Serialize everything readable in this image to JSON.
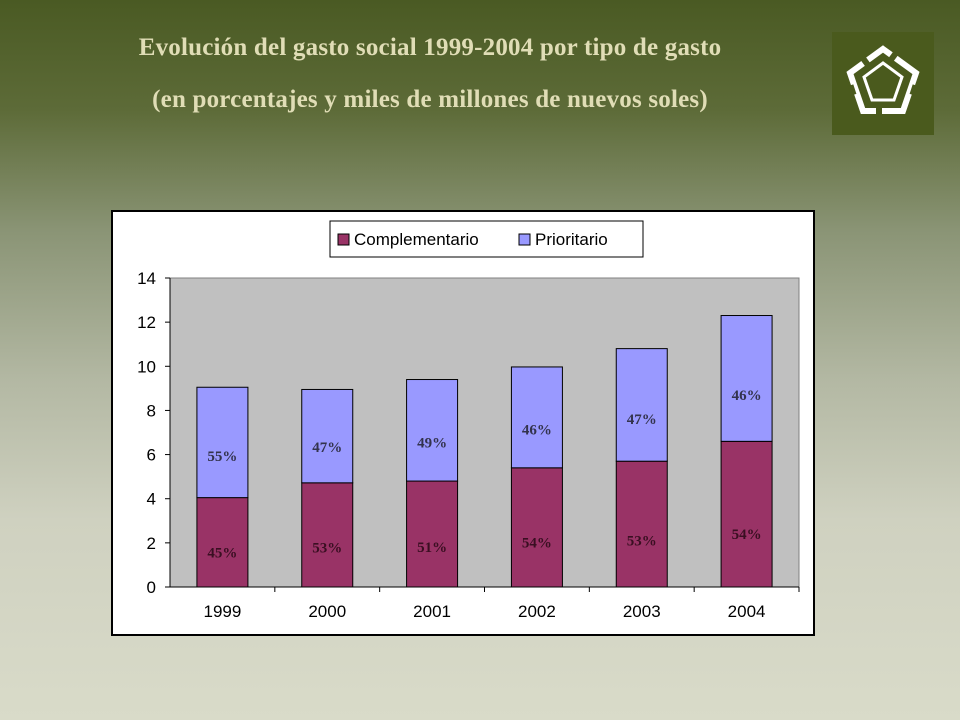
{
  "slide": {
    "title_line1": "Evolución del gasto social 1999-2004 por tipo de gasto",
    "title_line2": "(en porcentajes y miles de millones de nuevos soles)",
    "logo_icon": "pentagon-logo-icon",
    "colors": {
      "header_dark": "#4a5a1d",
      "title_text": "#e0ddb6"
    }
  },
  "chart_data": {
    "type": "bar",
    "stacked": true,
    "categories": [
      "1999",
      "2000",
      "2001",
      "2002",
      "2003",
      "2004"
    ],
    "series": [
      {
        "name": "Complementario",
        "color": "#993366",
        "values": [
          4.05,
          4.72,
          4.8,
          5.4,
          5.7,
          6.6
        ],
        "labels": [
          "45%",
          "53%",
          "51%",
          "54%",
          "53%",
          "54%"
        ]
      },
      {
        "name": "Prioritario",
        "color": "#9999ff",
        "values": [
          5.0,
          4.23,
          4.6,
          4.57,
          5.1,
          5.7
        ],
        "labels": [
          "55%",
          "47%",
          "49%",
          "46%",
          "47%",
          "46%"
        ]
      }
    ],
    "ylim": [
      0,
      14
    ],
    "yticks": [
      0,
      2,
      4,
      6,
      8,
      10,
      12,
      14
    ],
    "xlabel": "",
    "ylabel": "",
    "legend_position": "top",
    "plot_background": "#c0c0c0"
  }
}
